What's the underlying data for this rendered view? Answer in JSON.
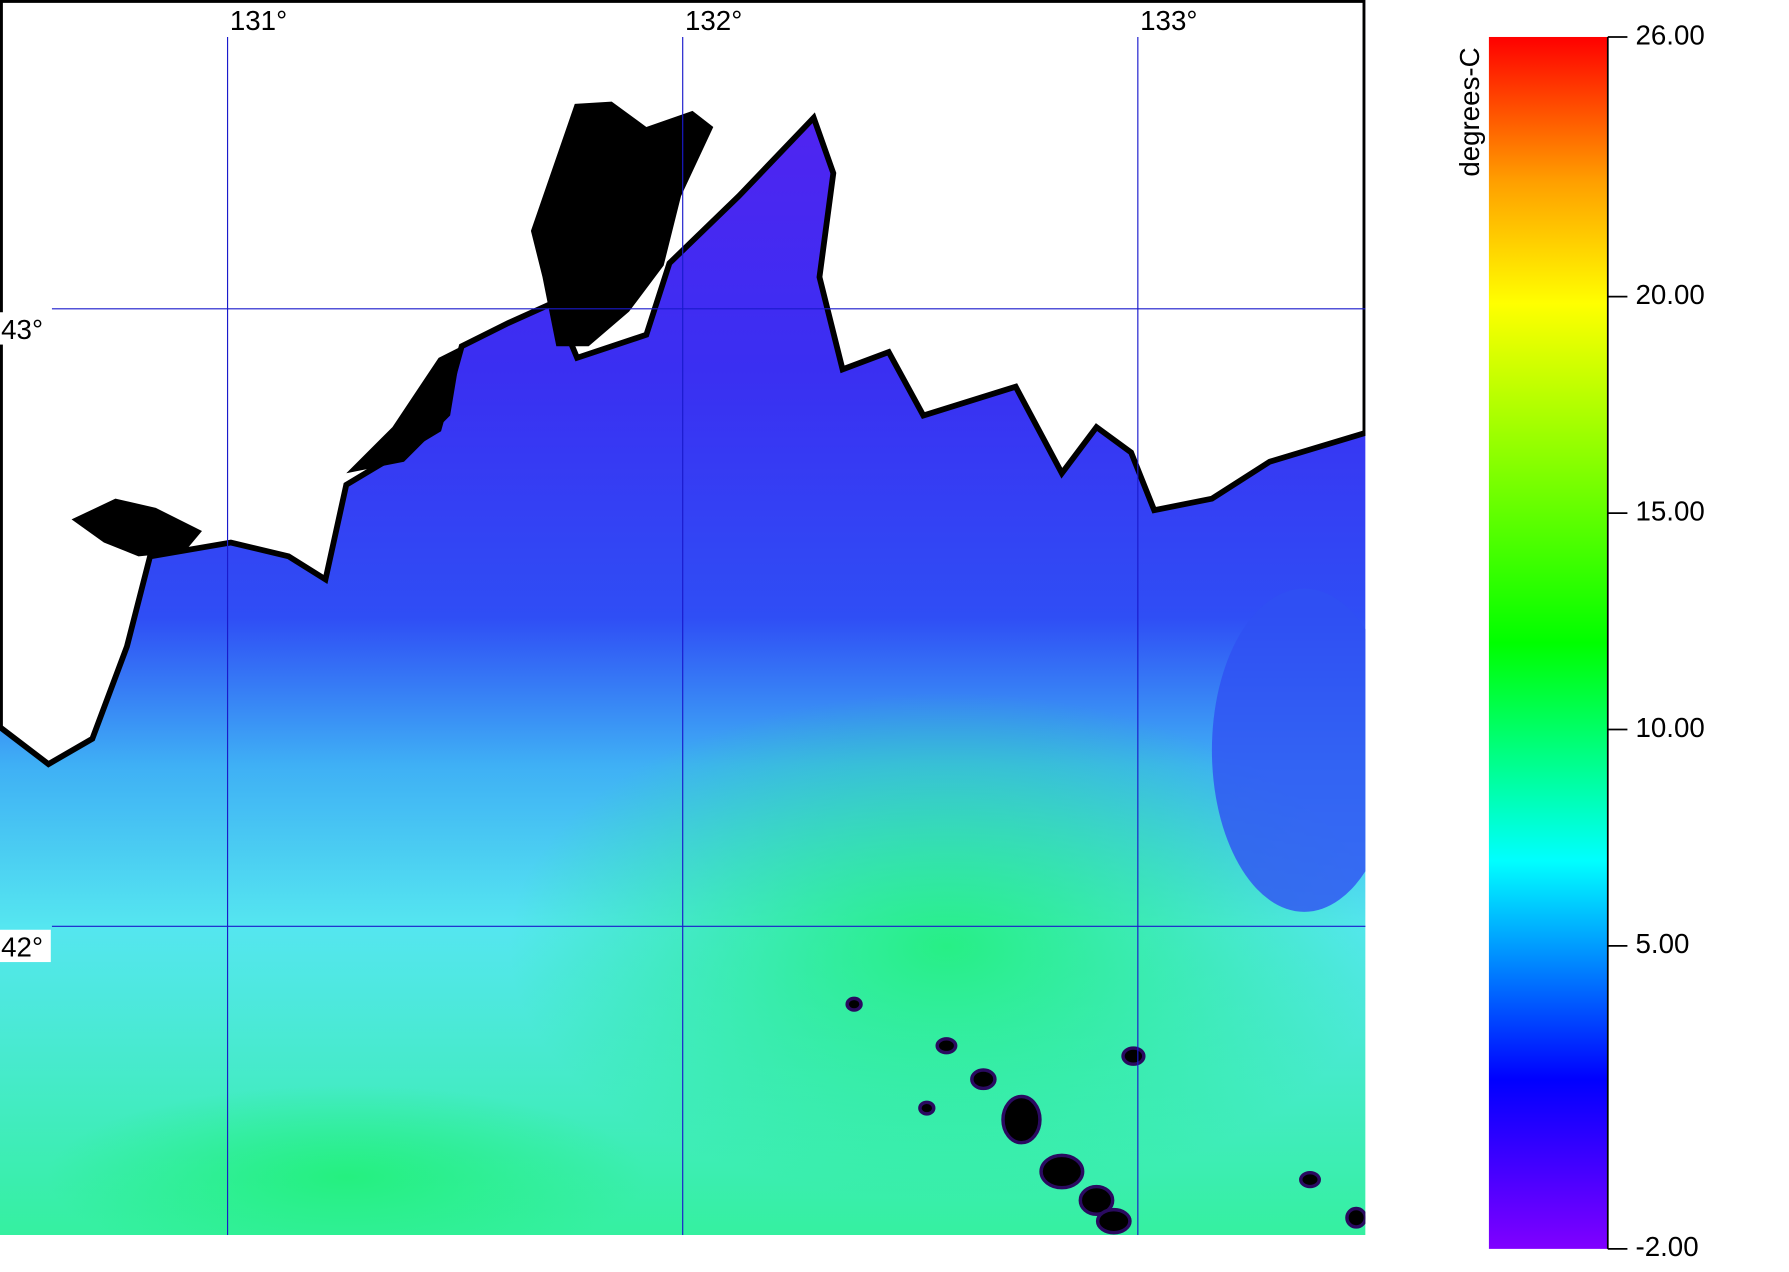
{
  "map": {
    "xlim": [
      130.5,
      133.5
    ],
    "ylim": [
      41.5,
      43.5
    ],
    "xticks": [
      {
        "value": 131,
        "label": "131°"
      },
      {
        "value": 132,
        "label": "132°"
      },
      {
        "value": 133,
        "label": "133°"
      }
    ],
    "yticks": [
      {
        "value": 42,
        "label": "42°"
      },
      {
        "value": 43,
        "label": "43°"
      }
    ],
    "grid_color": "#1a1acc"
  },
  "colorbar": {
    "label": "degrees-C",
    "lim": [
      -2,
      26
    ],
    "ticks": [
      {
        "value": -2,
        "label": "-2.00"
      },
      {
        "value": 5,
        "label": "5.00"
      },
      {
        "value": 10,
        "label": "10.00"
      },
      {
        "value": 15,
        "label": "15.00"
      },
      {
        "value": 20,
        "label": "20.00"
      },
      {
        "value": 26,
        "label": "26.00"
      }
    ]
  }
}
